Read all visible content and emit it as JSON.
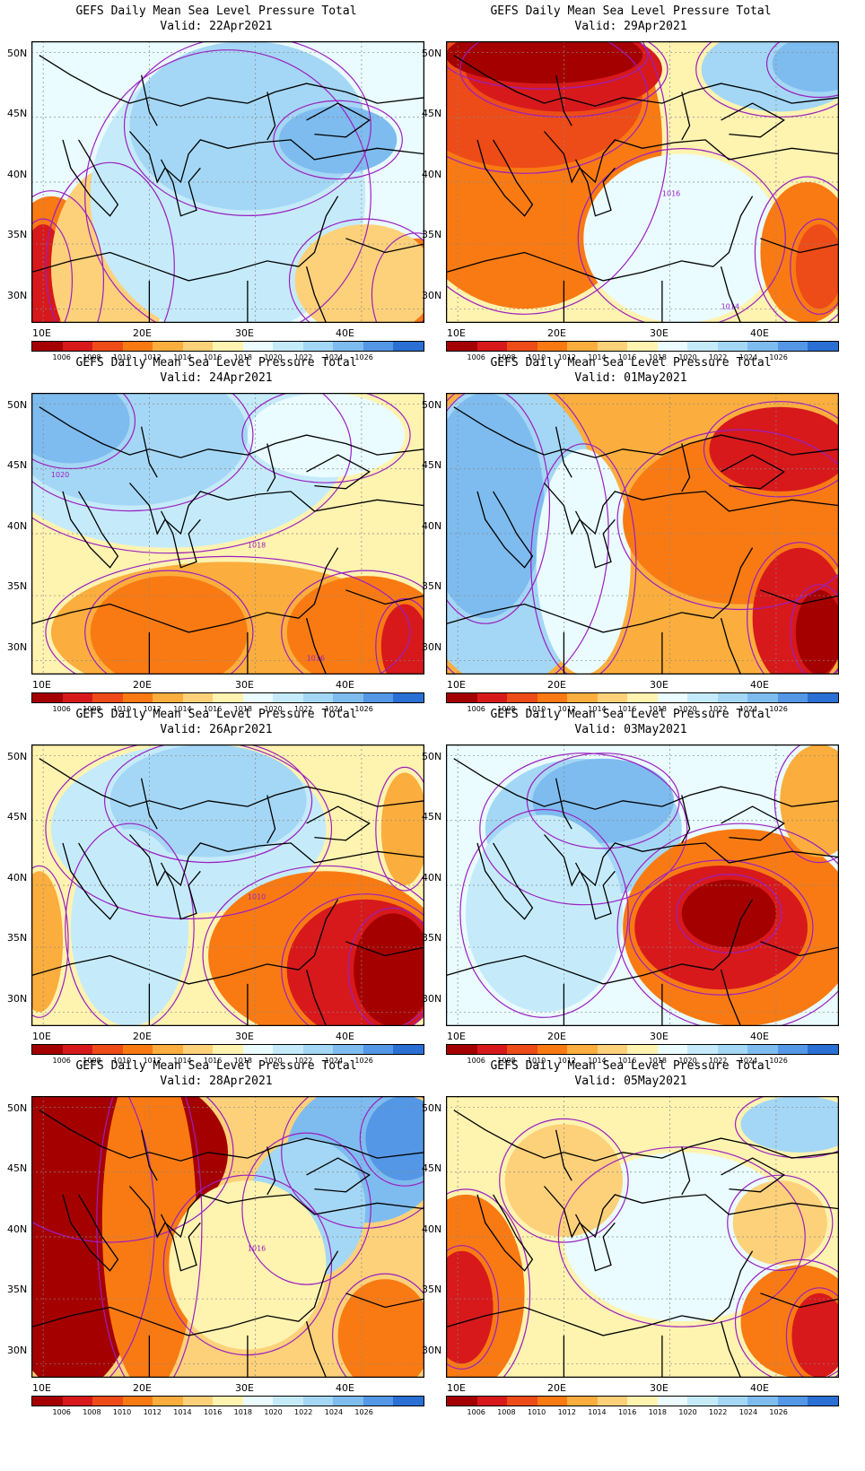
{
  "colorbar": {
    "colors": [
      "#a50000",
      "#d7191c",
      "#ed4b17",
      "#f97a13",
      "#fbae3d",
      "#fdd17a",
      "#fff3b0",
      "#eafcff",
      "#c5ebfb",
      "#a4d7f5",
      "#7ebcef",
      "#5497e6",
      "#2a6fd4"
    ],
    "labels": [
      "1006",
      "1008",
      "1010",
      "1012",
      "1014",
      "1016",
      "1018",
      "1020",
      "1022",
      "1024",
      "1026"
    ]
  },
  "axes": {
    "lon_ticks": [
      "10E",
      "20E",
      "30E",
      "40E"
    ],
    "lat_ticks": [
      "50N",
      "45N",
      "40N",
      "35N",
      "30N"
    ]
  },
  "panels": [
    {
      "title": "GEFS Daily Mean Sea Level Pressure Total",
      "valid": "Valid: 22Apr2021",
      "contour_labels": [],
      "scheme": "high-center"
    },
    {
      "title": "GEFS Daily Mean Sea Level Pressure Total",
      "valid": "Valid: 29Apr2021",
      "contour_labels": [
        "1016",
        "1014"
      ],
      "scheme": "low-west"
    },
    {
      "title": "GEFS Daily Mean Sea Level Pressure Total",
      "valid": "Valid: 24Apr2021",
      "contour_labels": [
        "1018",
        "1016",
        "1020"
      ],
      "scheme": "high-north"
    },
    {
      "title": "GEFS Daily Mean Sea Level Pressure Total",
      "valid": "Valid: 01May2021",
      "contour_labels": [],
      "scheme": "high-west"
    },
    {
      "title": "GEFS Daily Mean Sea Level Pressure Total",
      "valid": "Valid: 26Apr2021",
      "contour_labels": [
        "1010"
      ],
      "scheme": "low-southeast"
    },
    {
      "title": "GEFS Daily Mean Sea Level Pressure Total",
      "valid": "Valid: 03May2021",
      "contour_labels": [],
      "scheme": "low-east"
    },
    {
      "title": "GEFS Daily Mean Sea Level Pressure Total",
      "valid": "Valid: 28Apr2021",
      "contour_labels": [
        "1016"
      ],
      "scheme": "low-west-strong"
    },
    {
      "title": "GEFS Daily Mean Sea Level Pressure Total",
      "valid": "Valid: 05May2021",
      "contour_labels": [],
      "scheme": "mixed"
    }
  ]
}
